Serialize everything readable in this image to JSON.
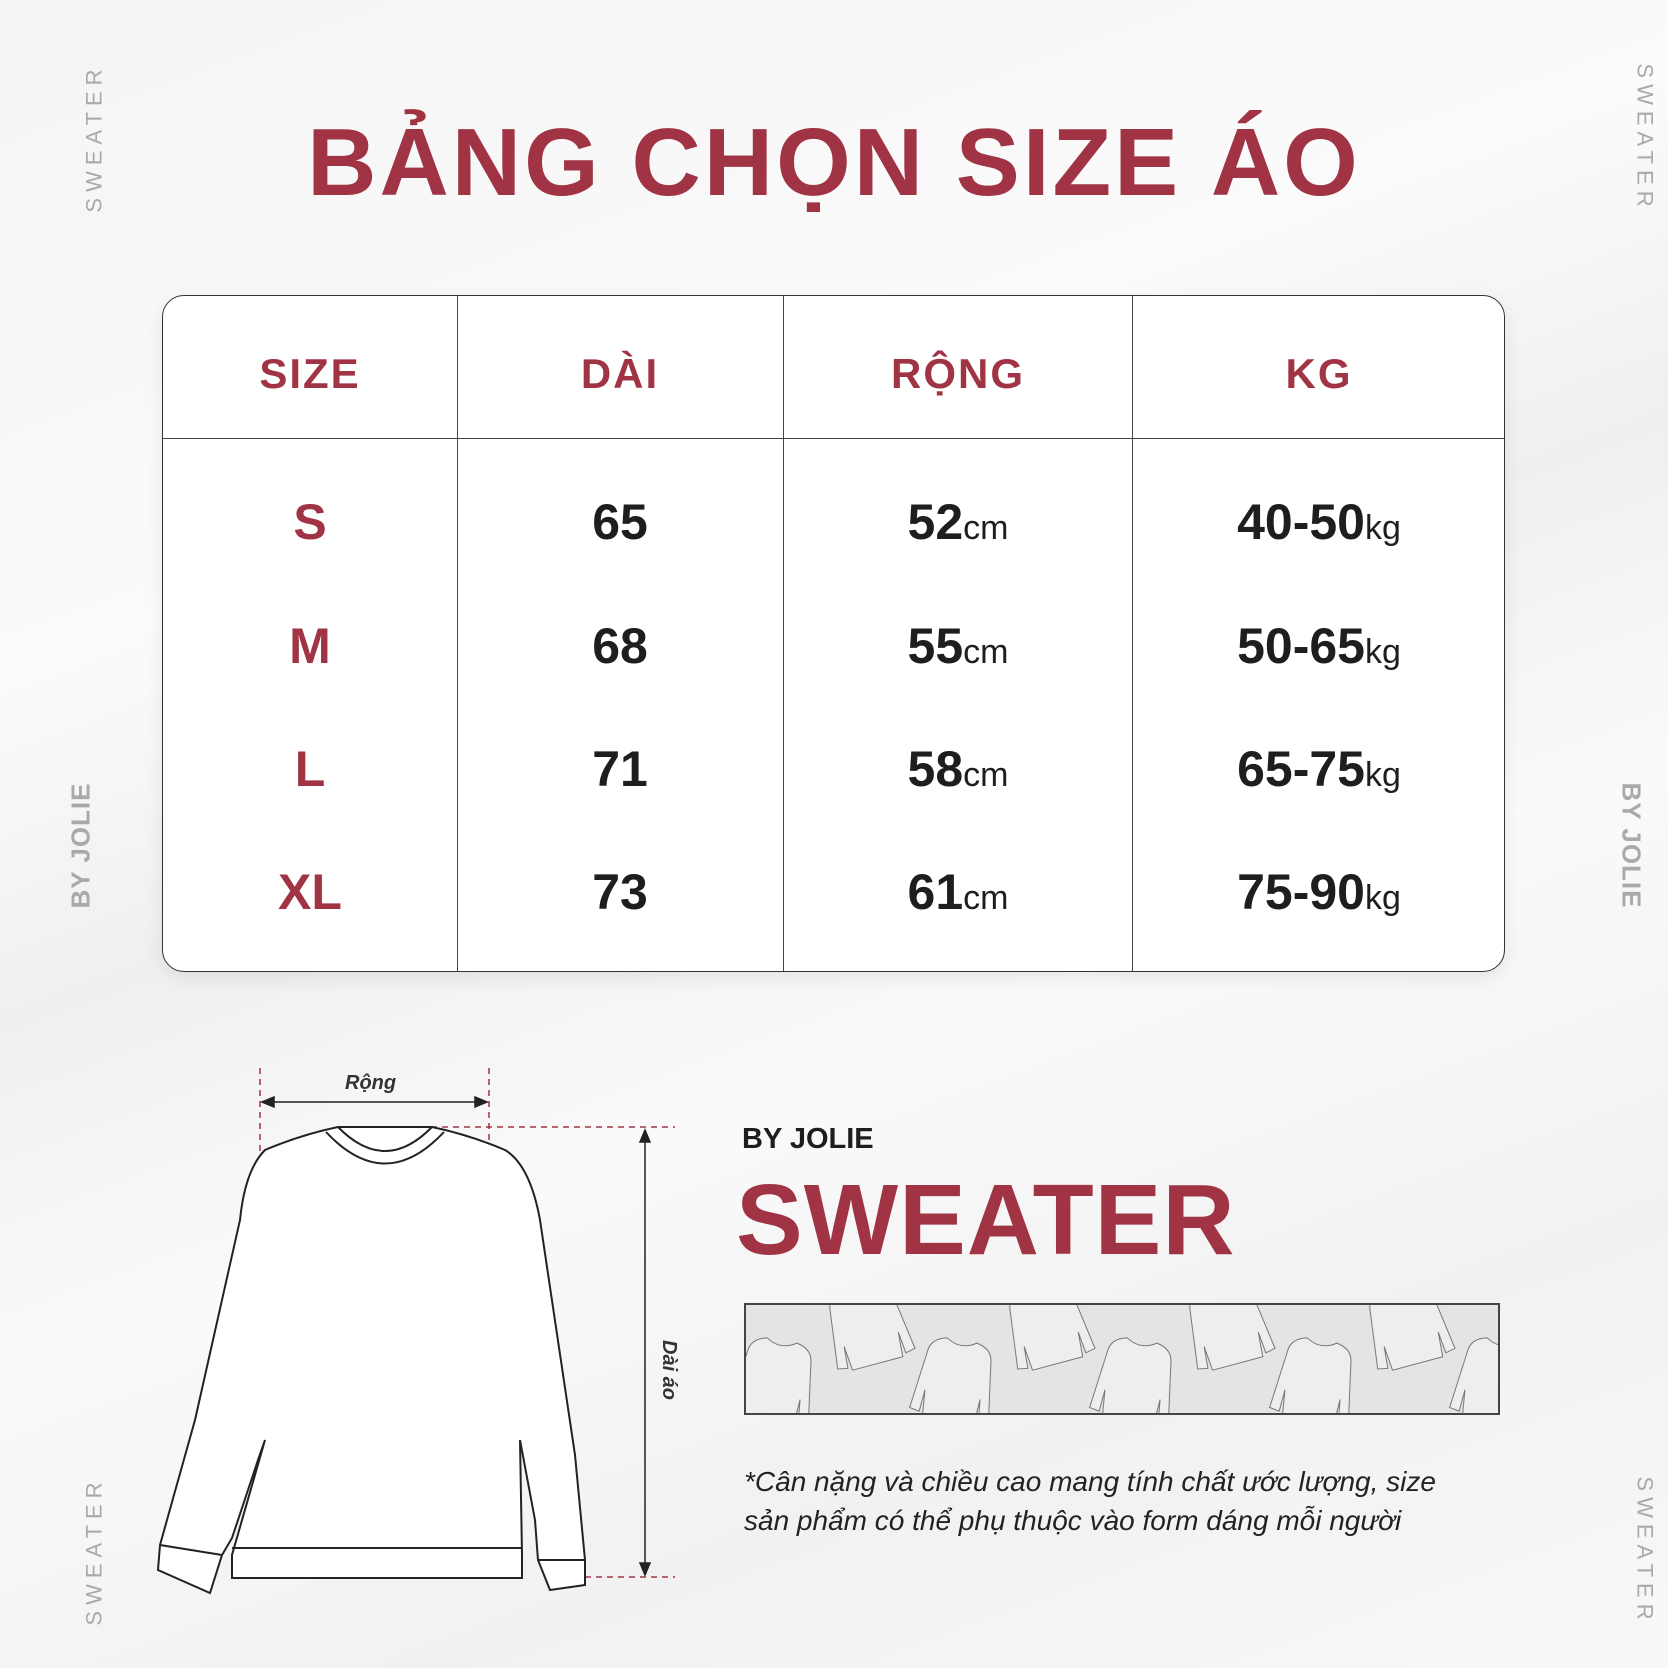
{
  "title": "BẢNG CHỌN SIZE ÁO",
  "side_labels": {
    "top": "SWEATER",
    "middle": "BY JOLIE",
    "bottom": "SWEATER"
  },
  "table": {
    "headers": [
      "SIZE",
      "DÀI",
      "RỘNG",
      "KG"
    ],
    "rows": [
      {
        "size": "S",
        "dai": "65",
        "rong": "52",
        "rong_unit": "cm",
        "kg": "40-50",
        "kg_unit": "kg"
      },
      {
        "size": "M",
        "dai": "68",
        "rong": "55",
        "rong_unit": "cm",
        "kg": "50-65",
        "kg_unit": "kg"
      },
      {
        "size": "L",
        "dai": "71",
        "rong": "58",
        "rong_unit": "cm",
        "kg": "65-75",
        "kg_unit": "kg"
      },
      {
        "size": "XL",
        "dai": "73",
        "rong": "61",
        "rong_unit": "cm",
        "kg": "75-90",
        "kg_unit": "kg"
      }
    ]
  },
  "diagram": {
    "width_label": "Rộng",
    "length_label": "Dài áo"
  },
  "brand": "BY JOLIE",
  "product": "SWEATER",
  "note": [
    "*Cân nặng và chiều cao mang tính chất ước lượng, size",
    "sản phẩm có thể phụ thuộc vào form dáng mỗi người"
  ],
  "colors": {
    "accent": "#a03444",
    "text": "#1e1e1e"
  }
}
